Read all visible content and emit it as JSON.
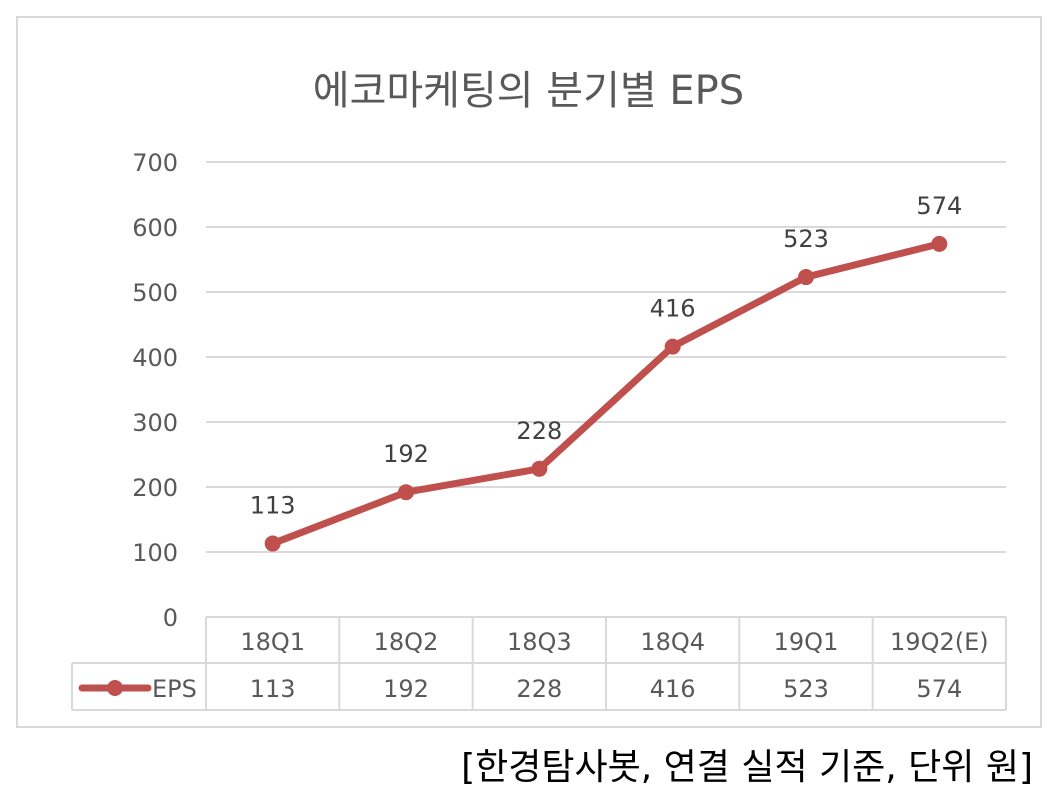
{
  "chart_data": {
    "type": "line",
    "title": "에코마케팅의 분기별 EPS",
    "categories": [
      "18Q1",
      "18Q2",
      "18Q3",
      "18Q4",
      "19Q1",
      "19Q2(E)"
    ],
    "series": [
      {
        "name": "EPS",
        "values": [
          113,
          192,
          228,
          416,
          523,
          574
        ],
        "color": "#c0504d"
      }
    ],
    "ylim": [
      0,
      700
    ],
    "yticks": [
      0,
      100,
      200,
      300,
      400,
      500,
      600,
      700
    ],
    "grid": true,
    "data_labels": true,
    "legend": "data-table",
    "xlabel": "",
    "ylabel": ""
  },
  "caption": "[한경탐사봇, 연결 실적 기준, 단위 원]",
  "colors": {
    "gridline": "#d9d9d9",
    "axis_text": "#595959",
    "frame": "#d9d9d9"
  }
}
